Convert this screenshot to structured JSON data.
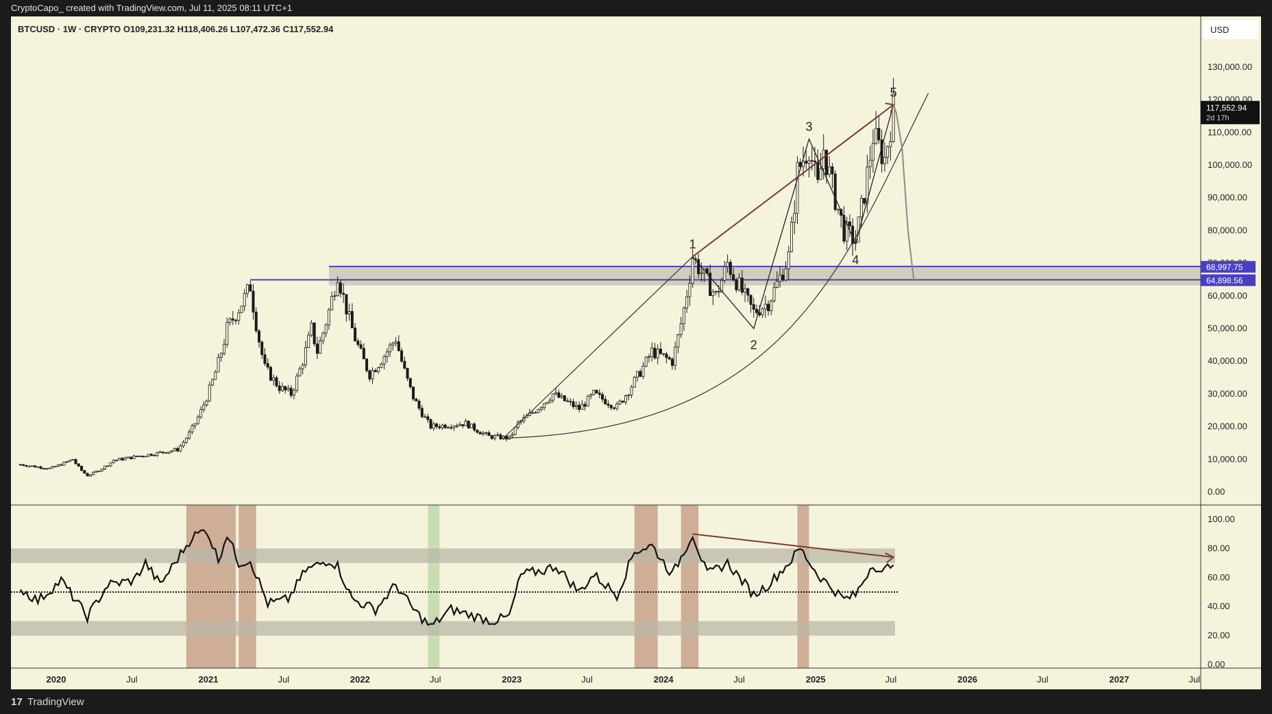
{
  "header": {
    "attribution": "CryptoCapo_ created with TradingView.com, Jul 11, 2025 08:11 UTC+1",
    "legend": "BTCUSD · 1W · CRYPTO  O109,231.32  H118,406.26  L107,472.36  C117,552.94",
    "currency": "USD"
  },
  "footer": {
    "brand": "TradingView"
  },
  "colors": {
    "background": "#f5f3dc",
    "candle": "#1a1a1a",
    "resistance_line": "#4a3fc4",
    "zone_fill": "#c8c7b4",
    "arrow": "#7a3a33",
    "rsi_bands": "#b9b7a6",
    "red_highlight": "#a05a40",
    "green_highlight": "#b7d3a0",
    "projection": "#8a8a8a"
  },
  "chart_data": [
    {
      "type": "candlestick",
      "symbol": "BTCUSD",
      "timeframe": "1W",
      "y_axis": {
        "min": 0,
        "max": 130000,
        "ticks": [
          "0.00",
          "10,000.00",
          "20,000.00",
          "30,000.00",
          "40,000.00",
          "50,000.00",
          "60,000.00",
          "70,000.00",
          "80,000.00",
          "90,000.00",
          "100,000.00",
          "110,000.00",
          "120,000.00",
          "130,000.00"
        ]
      },
      "x_axis": {
        "ticks": [
          {
            "label": "2020",
            "bold": true
          },
          {
            "label": "Jul",
            "bold": false
          },
          {
            "label": "2021",
            "bold": true
          },
          {
            "label": "Jul",
            "bold": false
          },
          {
            "label": "2022",
            "bold": true
          },
          {
            "label": "Jul",
            "bold": false
          },
          {
            "label": "2023",
            "bold": true
          },
          {
            "label": "Jul",
            "bold": false
          },
          {
            "label": "2024",
            "bold": true
          },
          {
            "label": "Jul",
            "bold": false
          },
          {
            "label": "2025",
            "bold": true
          },
          {
            "label": "Jul",
            "bold": false
          },
          {
            "label": "2026",
            "bold": true
          },
          {
            "label": "Jul",
            "bold": false
          },
          {
            "label": "2027",
            "bold": true
          },
          {
            "label": "Jul",
            "bold": false
          }
        ]
      },
      "price_series_anchors": [
        [
          "2019-10-07",
          8400
        ],
        [
          "2019-12-16",
          7200
        ],
        [
          "2020-02-10",
          10000
        ],
        [
          "2020-03-16",
          5000
        ],
        [
          "2020-05-18",
          9700
        ],
        [
          "2020-07-20",
          11000
        ],
        [
          "2020-10-19",
          13000
        ],
        [
          "2020-12-28",
          29000
        ],
        [
          "2021-02-15",
          50000
        ],
        [
          "2021-04-12",
          63000
        ],
        [
          "2021-05-17",
          38000
        ],
        [
          "2021-06-21",
          32000
        ],
        [
          "2021-07-19",
          30000
        ],
        [
          "2021-09-06",
          50000
        ],
        [
          "2021-09-20",
          43000
        ],
        [
          "2021-11-08",
          67000
        ],
        [
          "2021-12-20",
          47000
        ],
        [
          "2022-01-24",
          36000
        ],
        [
          "2022-03-28",
          47000
        ],
        [
          "2022-05-09",
          29000
        ],
        [
          "2022-06-20",
          20000
        ],
        [
          "2022-09-12",
          21000
        ],
        [
          "2022-11-07",
          17000
        ],
        [
          "2022-12-26",
          16500
        ],
        [
          "2023-01-16",
          21000
        ],
        [
          "2023-04-10",
          30000
        ],
        [
          "2023-06-12",
          25500
        ],
        [
          "2023-07-17",
          30000
        ],
        [
          "2023-09-11",
          26000
        ],
        [
          "2023-10-23",
          34000
        ],
        [
          "2023-12-04",
          43000
        ],
        [
          "2024-01-22",
          40000
        ],
        [
          "2024-03-11",
          72000
        ],
        [
          "2024-05-06",
          60000
        ],
        [
          "2024-06-03",
          70000
        ],
        [
          "2024-08-05",
          55000
        ],
        [
          "2024-09-09",
          58000
        ],
        [
          "2024-10-28",
          72000
        ],
        [
          "2024-11-18",
          98000
        ],
        [
          "2024-12-16",
          106000
        ],
        [
          "2025-01-06",
          93000
        ],
        [
          "2025-01-20",
          105000
        ],
        [
          "2025-03-10",
          80000
        ],
        [
          "2025-04-07",
          77000
        ],
        [
          "2025-05-19",
          109000
        ],
        [
          "2025-06-16",
          102000
        ],
        [
          "2025-07-07",
          117552
        ]
      ],
      "last_price": {
        "value": "117,552.94",
        "sublabel": "2d 17h"
      },
      "horizontal_levels": [
        {
          "value": 68997.75,
          "label": "68,997.75"
        },
        {
          "value": 64898.56,
          "label": "64,898.56"
        }
      ],
      "wave_labels": [
        {
          "label": "1",
          "date": "2024-03-11",
          "price": 72000
        },
        {
          "label": "2",
          "date": "2024-08-05",
          "price": 50000
        },
        {
          "label": "3",
          "date": "2024-12-16",
          "price": 108000
        },
        {
          "label": "4",
          "date": "2025-04-07",
          "price": 76000
        },
        {
          "label": "5",
          "date": "2025-07-07",
          "price": 118500
        }
      ],
      "projection_path": [
        [
          "2025-07-14",
          116000
        ],
        [
          "2025-07-28",
          105000
        ],
        [
          "2025-08-11",
          80000
        ],
        [
          "2025-08-25",
          64898.56
        ]
      ]
    },
    {
      "type": "line",
      "indicator": "RSI",
      "y_axis": {
        "min": 0,
        "max": 100,
        "ticks": [
          "0.00",
          "20.00",
          "40.00",
          "60.00",
          "80.00",
          "100.00"
        ]
      },
      "midline": 50,
      "bands": [
        [
          70,
          80
        ],
        [
          20,
          30
        ]
      ],
      "rsi_anchors": [
        [
          "2019-10-07",
          52
        ],
        [
          "2019-11-18",
          44
        ],
        [
          "2020-01-13",
          58
        ],
        [
          "2020-03-16",
          33
        ],
        [
          "2020-05-04",
          55
        ],
        [
          "2020-07-06",
          58
        ],
        [
          "2020-08-03",
          70
        ],
        [
          "2020-09-07",
          55
        ],
        [
          "2020-11-23",
          88
        ],
        [
          "2020-12-28",
          93
        ],
        [
          "2021-01-25",
          72
        ],
        [
          "2021-02-15",
          90
        ],
        [
          "2021-03-15",
          70
        ],
        [
          "2021-04-12",
          72
        ],
        [
          "2021-05-24",
          42
        ],
        [
          "2021-07-12",
          45
        ],
        [
          "2021-08-23",
          65
        ],
        [
          "2021-10-18",
          72
        ],
        [
          "2021-11-08",
          68
        ],
        [
          "2021-12-13",
          45
        ],
        [
          "2022-02-07",
          38
        ],
        [
          "2022-03-28",
          55
        ],
        [
          "2022-05-09",
          38
        ],
        [
          "2022-06-20",
          26
        ],
        [
          "2022-08-08",
          38
        ],
        [
          "2022-11-14",
          30
        ],
        [
          "2022-12-26",
          33
        ],
        [
          "2023-01-23",
          62
        ],
        [
          "2023-03-20",
          65
        ],
        [
          "2023-04-17",
          68
        ],
        [
          "2023-06-12",
          50
        ],
        [
          "2023-07-17",
          62
        ],
        [
          "2023-09-11",
          48
        ],
        [
          "2023-10-23",
          78
        ],
        [
          "2023-12-04",
          82
        ],
        [
          "2024-01-22",
          62
        ],
        [
          "2024-03-11",
          90
        ],
        [
          "2024-04-15",
          62
        ],
        [
          "2024-06-03",
          70
        ],
        [
          "2024-08-05",
          48
        ],
        [
          "2024-09-09",
          55
        ],
        [
          "2024-10-28",
          70
        ],
        [
          "2024-11-25",
          80
        ],
        [
          "2025-01-06",
          62
        ],
        [
          "2025-03-10",
          45
        ],
        [
          "2025-04-07",
          48
        ],
        [
          "2025-05-19",
          70
        ],
        [
          "2025-06-09",
          62
        ],
        [
          "2025-07-07",
          72
        ]
      ],
      "highlights": [
        {
          "kind": "red",
          "start": "2020-11-09",
          "end": "2021-03-08"
        },
        {
          "kind": "red",
          "start": "2021-03-15",
          "end": "2021-04-26"
        },
        {
          "kind": "green",
          "start": "2022-06-13",
          "end": "2022-07-11"
        },
        {
          "kind": "red",
          "start": "2023-10-23",
          "end": "2023-12-18"
        },
        {
          "kind": "red",
          "start": "2024-02-12",
          "end": "2024-03-25"
        },
        {
          "kind": "red",
          "start": "2024-11-18",
          "end": "2024-12-16"
        }
      ]
    }
  ]
}
